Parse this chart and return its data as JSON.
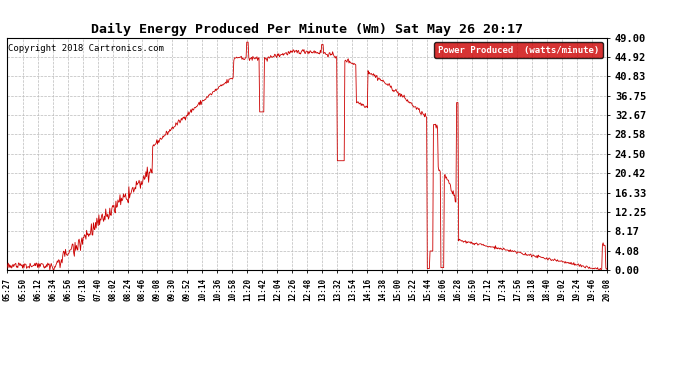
{
  "title": "Daily Energy Produced Per Minute (Wm) Sat May 26 20:17",
  "copyright": "Copyright 2018 Cartronics.com",
  "legend_label": "Power Produced  (watts/minute)",
  "line_color": "#cc0000",
  "legend_bg": "#cc0000",
  "legend_text_color": "#ffffff",
  "background_color": "#ffffff",
  "grid_color": "#bbbbbb",
  "yticks": [
    0.0,
    4.08,
    8.17,
    12.25,
    16.33,
    20.42,
    24.5,
    28.58,
    32.67,
    36.75,
    40.83,
    44.92,
    49.0
  ],
  "ymax": 49.0,
  "xtick_labels": [
    "05:27",
    "05:50",
    "06:12",
    "06:34",
    "06:56",
    "07:18",
    "07:40",
    "08:02",
    "08:24",
    "08:46",
    "09:08",
    "09:30",
    "09:52",
    "10:14",
    "10:36",
    "10:58",
    "11:20",
    "11:42",
    "12:04",
    "12:26",
    "12:48",
    "13:10",
    "13:32",
    "13:54",
    "14:16",
    "14:38",
    "15:00",
    "15:22",
    "15:44",
    "16:06",
    "16:28",
    "16:50",
    "17:12",
    "17:34",
    "17:56",
    "18:18",
    "18:40",
    "19:02",
    "19:24",
    "19:46",
    "20:08"
  ]
}
